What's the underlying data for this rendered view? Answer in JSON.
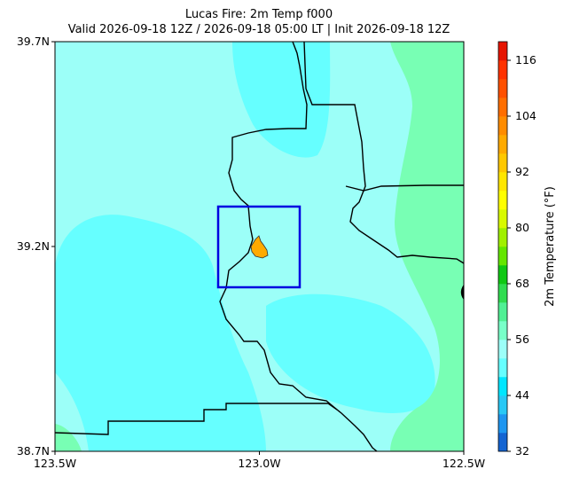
{
  "title": [
    "Lucas Fire: 2m Temp f000",
    "Valid 2026-09-18 12Z / 2026-09-18 05:00 LT | Init 2026-09-18 12Z"
  ],
  "map": {
    "xlim": [
      -123.5,
      -122.5
    ],
    "ylim": [
      38.7,
      39.7
    ],
    "xticks": [
      {
        "value": -123.5,
        "label": "123.5W"
      },
      {
        "value": -123.0,
        "label": "123.0W"
      },
      {
        "value": -122.5,
        "label": "122.5W"
      }
    ],
    "yticks": [
      {
        "value": 38.7,
        "label": "38.7N"
      },
      {
        "value": 39.2,
        "label": "39.2N"
      },
      {
        "value": 39.7,
        "label": "39.7N"
      }
    ]
  },
  "colorbar": {
    "label": "2m Temperature (°F)",
    "levels": [
      32,
      36,
      40,
      44,
      48,
      52,
      56,
      60,
      64,
      68,
      72,
      76,
      80,
      84,
      88,
      92,
      96,
      100,
      104,
      108,
      112,
      116,
      120
    ],
    "colors": [
      "#1464d2",
      "#1e96f0",
      "#28c8f5",
      "#00e6ff",
      "#66ffff",
      "#9cfff8",
      "#78ffc8",
      "#50f094",
      "#30dc50",
      "#10c814",
      "#64e600",
      "#a0f000",
      "#d8fa00",
      "#ffff00",
      "#ffe600",
      "#ffc800",
      "#ffaa00",
      "#ff8c00",
      "#ff6e00",
      "#ff5000",
      "#ff3200",
      "#e61400"
    ],
    "ticks": [
      32,
      44,
      56,
      68,
      80,
      92,
      104,
      116
    ]
  }
}
